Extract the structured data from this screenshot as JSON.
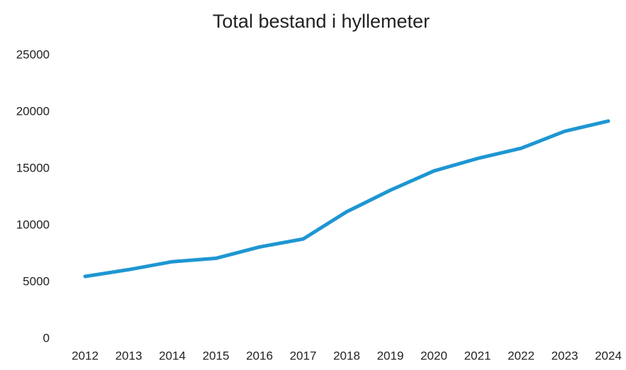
{
  "chart_data": {
    "type": "line",
    "title": "Total bestand i hyllemeter",
    "categories": [
      "2012",
      "2013",
      "2014",
      "2015",
      "2016",
      "2017",
      "2018",
      "2019",
      "2020",
      "2021",
      "2022",
      "2023",
      "2024"
    ],
    "series": [
      {
        "name": "Total bestand i hyllemeter",
        "color": "#1e96d2",
        "values": [
          5500,
          6100,
          6800,
          7100,
          8100,
          8800,
          11200,
          13100,
          14800,
          15900,
          16800,
          18300,
          19200
        ]
      }
    ],
    "ylim": [
      0,
      25000
    ],
    "yticks": [
      0,
      5000,
      10000,
      15000,
      20000,
      25000
    ],
    "grid": false
  }
}
